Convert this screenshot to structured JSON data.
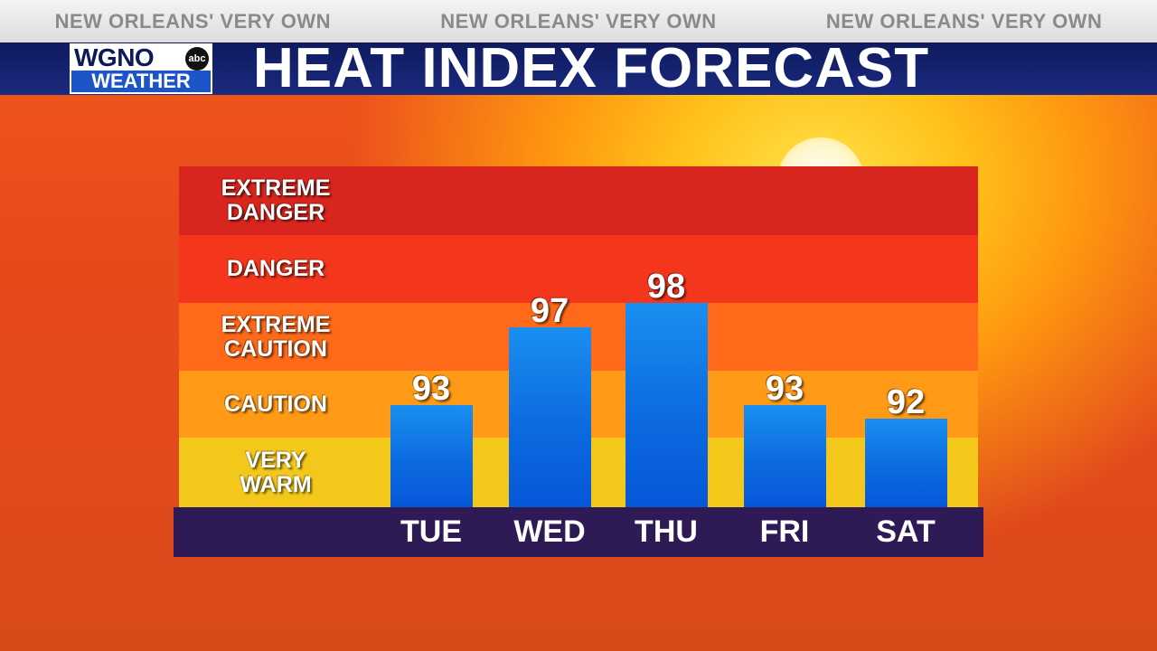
{
  "ticker": [
    "NEW ORLEANS' VERY OWN",
    "NEW ORLEANS' VERY OWN",
    "NEW ORLEANS' VERY OWN"
  ],
  "logo": {
    "top": "WGNO",
    "network": "abc",
    "bottom": "WEATHER"
  },
  "title": "HEAT INDEX FORECAST",
  "zones": [
    {
      "label": "EXTREME\nDANGER",
      "color": "#d8261e"
    },
    {
      "label": "DANGER",
      "color": "#f4361c"
    },
    {
      "label": "EXTREME\nCAUTION",
      "color": "#ff6a1a"
    },
    {
      "label": "CAUTION",
      "color": "#ff9a16"
    },
    {
      "label": "VERY\nWARM",
      "color": "#f3c81a"
    }
  ],
  "chart_data": {
    "type": "bar",
    "categories": [
      "TUE",
      "WED",
      "THU",
      "FRI",
      "SAT"
    ],
    "values": [
      93,
      97,
      98,
      93,
      92
    ],
    "title": "HEAT INDEX FORECAST",
    "xlabel": "",
    "ylabel": "",
    "bar_color": "#0c6be0"
  }
}
